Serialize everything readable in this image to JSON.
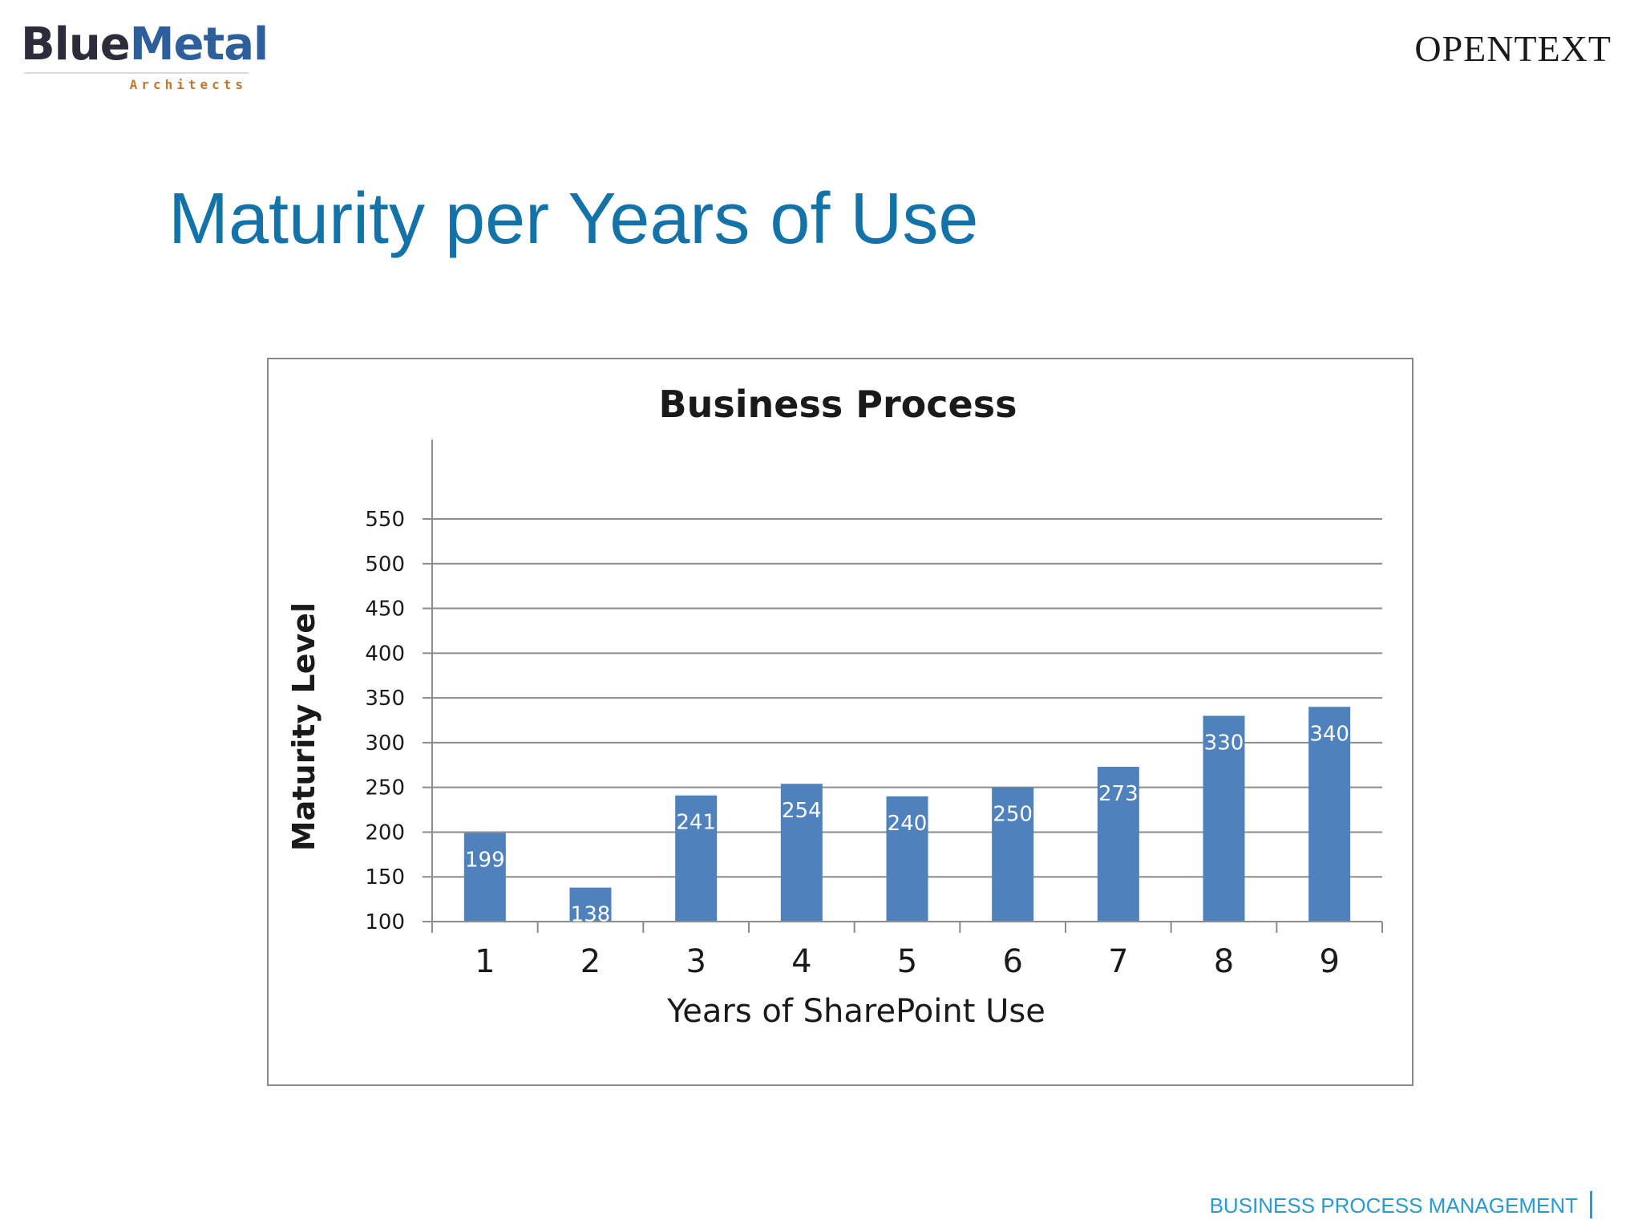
{
  "branding": {
    "left_logo_main_a": "Blue",
    "left_logo_main_b": "Metal",
    "left_logo_sub": "Architects",
    "right_logo": "OPENTEXT"
  },
  "slide": {
    "title": "Maturity per Years of Use",
    "footer": "BUSINESS PROCESS MANAGEMENT"
  },
  "colors": {
    "bar": "#4f81bd",
    "title": "#1372a8",
    "footer": "#2a9ad2"
  },
  "chart_data": {
    "type": "bar",
    "title": "Business Process",
    "xlabel": "Years of SharePoint Use",
    "ylabel": "Maturity Level",
    "categories": [
      "1",
      "2",
      "3",
      "4",
      "5",
      "6",
      "7",
      "8",
      "9"
    ],
    "values": [
      199,
      138,
      241,
      254,
      240,
      250,
      273,
      330,
      340
    ],
    "data_labels": [
      "199",
      "138",
      "241",
      "254",
      "240",
      "250",
      "273",
      "330",
      "340"
    ],
    "ylim": [
      100,
      550
    ],
    "yticks": [
      100,
      150,
      200,
      250,
      300,
      350,
      400,
      450,
      500,
      550
    ],
    "ytick_labels": [
      "100",
      "150",
      "200",
      "250",
      "300",
      "350",
      "400",
      "450",
      "500",
      "550"
    ],
    "grid": true,
    "legend": "none"
  }
}
